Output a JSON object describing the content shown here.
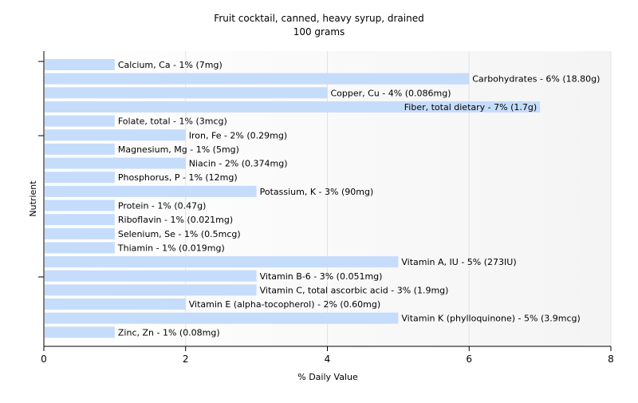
{
  "chart_data": {
    "type": "bar",
    "orientation": "horizontal",
    "title": "Fruit cocktail, canned, heavy syrup, drained",
    "subtitle": "100 grams",
    "xlabel": "% Daily Value",
    "ylabel": "Nutrient",
    "xlim": [
      0,
      8
    ],
    "xticks": [
      0,
      2,
      4,
      6,
      8
    ],
    "grid": true,
    "bar_color": "#c6dcfb",
    "categories": [
      "Calcium, Ca",
      "Carbohydrates",
      "Copper, Cu",
      "Fiber, total dietary",
      "Folate, total",
      "Iron, Fe",
      "Magnesium, Mg",
      "Niacin",
      "Phosphorus, P",
      "Potassium, K",
      "Protein",
      "Riboflavin",
      "Selenium, Se",
      "Thiamin",
      "Vitamin A, IU",
      "Vitamin B-6",
      "Vitamin C, total ascorbic acid",
      "Vitamin E (alpha-tocopherol)",
      "Vitamin K (phylloquinone)",
      "Zinc, Zn"
    ],
    "values": [
      1,
      6,
      4,
      7,
      1,
      2,
      1,
      2,
      1,
      3,
      1,
      1,
      1,
      1,
      5,
      3,
      3,
      2,
      5,
      1
    ],
    "labels": [
      "Calcium, Ca - 1% (7mg)",
      "Carbohydrates - 6% (18.80g)",
      "Copper, Cu - 4% (0.086mg)",
      "Fiber, total dietary - 7% (1.7g)",
      "Folate, total - 1% (3mcg)",
      "Iron, Fe - 2% (0.29mg)",
      "Magnesium, Mg - 1% (5mg)",
      "Niacin - 2% (0.374mg)",
      "Phosphorus, P - 1% (12mg)",
      "Potassium, K - 3% (90mg)",
      "Protein - 1% (0.47g)",
      "Riboflavin - 1% (0.021mg)",
      "Selenium, Se - 1% (0.5mcg)",
      "Thiamin - 1% (0.019mg)",
      "Vitamin A, IU - 5% (273IU)",
      "Vitamin B-6 - 3% (0.051mg)",
      "Vitamin C, total ascorbic acid - 3% (1.9mg)",
      "Vitamin E (alpha-tocopherol) - 2% (0.60mg)",
      "Vitamin K (phylloquinone) - 5% (3.9mcg)",
      "Zinc, Zn - 1% (0.08mg)"
    ]
  }
}
